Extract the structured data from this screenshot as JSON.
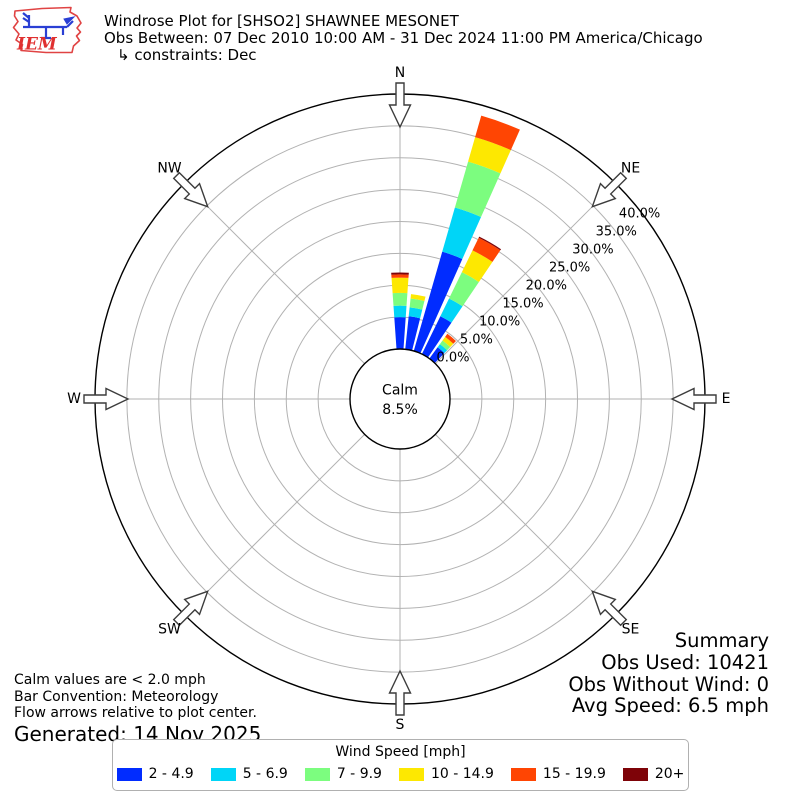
{
  "header": {
    "logo_text": "IEM",
    "title": "Windrose Plot for [SHSO2] SHAWNEE MESONET",
    "subtitle": "Obs Between: 07 Dec 2010 10:00 AM - 31 Dec 2024 11:00 PM America/Chicago",
    "constraint": "↳ constraints: Dec"
  },
  "chart_data": {
    "type": "windrose",
    "title": "Windrose Plot for [SHSO2] SHAWNEE MESONET",
    "units": "mph",
    "calm": {
      "label": "Calm",
      "value": "8.5%"
    },
    "compass_labels": [
      "N",
      "NE",
      "E",
      "SE",
      "S",
      "SW",
      "W",
      "NW"
    ],
    "radial_axis": {
      "max_pct": 40,
      "ticks_pct": [
        0,
        5,
        10,
        15,
        20,
        25,
        30,
        35,
        40
      ],
      "tick_labels": [
        "0.0%",
        "5.0%",
        "10.0%",
        "15.0%",
        "20.0%",
        "25.0%",
        "30.0%",
        "35.0%",
        "40.0%"
      ],
      "label_angle_deg": 52.3
    },
    "speed_bins": [
      {
        "label": "2 - 4.9",
        "color": "#012cff"
      },
      {
        "label": "5 - 6.9",
        "color": "#00d5f7"
      },
      {
        "label": "7 - 9.9",
        "color": "#7cfd7f"
      },
      {
        "label": "10 - 14.9",
        "color": "#fde801"
      },
      {
        "label": "15 - 19.9",
        "color": "#ff4503"
      },
      {
        "label": "20+",
        "color": "#7e0308"
      }
    ],
    "sector_width_deg": 8,
    "bars": [
      {
        "direction_deg": 0,
        "frequencies_pct": [
          5.0,
          1.8,
          2.0,
          2.4,
          0.5,
          0.3
        ]
      },
      {
        "direction_deg": 10,
        "frequencies_pct": [
          5.2,
          1.4,
          1.4,
          0.7,
          0,
          0
        ]
      },
      {
        "direction_deg": 20,
        "frequencies_pct": [
          16.2,
          7.2,
          7.5,
          4.0,
          3.5,
          0
        ]
      },
      {
        "direction_deg": 30,
        "frequencies_pct": [
          6.6,
          3.1,
          4.6,
          3.8,
          2.2,
          0.2
        ]
      },
      {
        "direction_deg": 40,
        "frequencies_pct": [
          2.2,
          0.6,
          0.7,
          0.7,
          0.6,
          0
        ]
      }
    ],
    "grid_color": "#b2b2b2",
    "outline_color": "#000000"
  },
  "notes": {
    "line1": "Calm values are < 2.0 mph",
    "line2": "Bar Convention: Meteorology",
    "line3": "Flow arrows relative to plot center.",
    "generated": "Generated: 14 Nov 2025"
  },
  "summary": {
    "title": "Summary",
    "obs_used": "Obs Used: 10421",
    "obs_without_wind": "Obs Without Wind: 0",
    "avg_speed": "Avg Speed: 6.5 mph"
  },
  "legend": {
    "title": "Wind Speed [mph]"
  }
}
